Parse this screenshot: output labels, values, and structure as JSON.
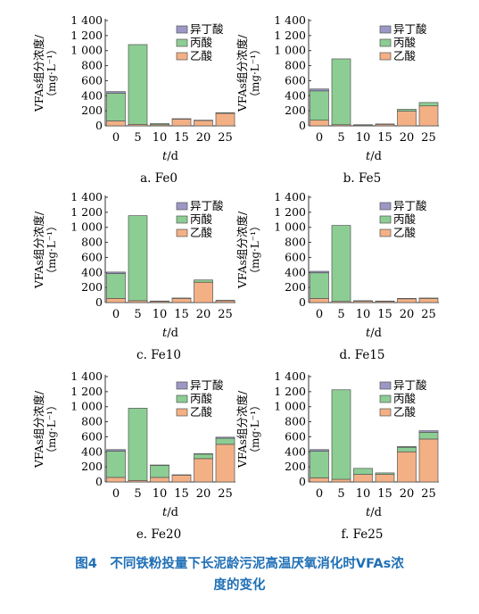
{
  "caption": {
    "line1": "图4　不同铁粉投量下长泥龄污泥高温厌氧消化时VFAs浓",
    "line2": "度的变化"
  },
  "colors": {
    "isobutyric": "#9c98c6",
    "propionic": "#8ccd93",
    "acetic": "#f4b085",
    "edge": "#555555"
  },
  "chart_data": [
    {
      "type": "bar",
      "stacked": true,
      "panel": "a. Fe0",
      "ylabel": "VFAs组分浓度/（mg·L⁻¹）",
      "xlabel": "t/d",
      "categories": [
        "0",
        "5",
        "10",
        "15",
        "20",
        "25"
      ],
      "ylim": [
        0,
        1400
      ],
      "yticks": [
        "0",
        "200",
        "400",
        "600",
        "800",
        "1 000",
        "1 200",
        "1 400"
      ],
      "series": [
        {
          "name": "乙酸",
          "values": [
            65,
            20,
            15,
            90,
            70,
            165
          ]
        },
        {
          "name": "丙酸",
          "values": [
            370,
            1060,
            15,
            5,
            5,
            10
          ]
        },
        {
          "name": "异丁酸",
          "values": [
            20,
            0,
            0,
            0,
            0,
            0
          ]
        }
      ]
    },
    {
      "type": "bar",
      "stacked": true,
      "panel": "b. Fe5",
      "ylabel": "VFAs组分浓度/（mg·L⁻¹）",
      "xlabel": "t/d",
      "categories": [
        "0",
        "5",
        "10",
        "15",
        "20",
        "25"
      ],
      "ylim": [
        0,
        1400
      ],
      "yticks": [
        "0",
        "200",
        "400",
        "600",
        "800",
        "1 000",
        "1 200",
        "1 400"
      ],
      "series": [
        {
          "name": "乙酸",
          "values": [
            75,
            15,
            10,
            20,
            195,
            265
          ]
        },
        {
          "name": "丙酸",
          "values": [
            390,
            875,
            5,
            5,
            25,
            45
          ]
        },
        {
          "name": "异丁酸",
          "values": [
            25,
            0,
            0,
            0,
            0,
            0
          ]
        }
      ]
    },
    {
      "type": "bar",
      "stacked": true,
      "panel": "c. Fe10",
      "ylabel": "VFAs组分浓度/（mg·L⁻¹）",
      "xlabel": "t/d",
      "categories": [
        "0",
        "5",
        "10",
        "15",
        "20",
        "25"
      ],
      "ylim": [
        0,
        1400
      ],
      "yticks": [
        "0",
        "200",
        "400",
        "600",
        "800",
        "1 000",
        "1 200",
        "1 400"
      ],
      "series": [
        {
          "name": "乙酸",
          "values": [
            55,
            25,
            15,
            55,
            270,
            25
          ]
        },
        {
          "name": "丙酸",
          "values": [
            330,
            1130,
            5,
            5,
            30,
            5
          ]
        },
        {
          "name": "异丁酸",
          "values": [
            20,
            0,
            0,
            0,
            0,
            0
          ]
        }
      ]
    },
    {
      "type": "bar",
      "stacked": true,
      "panel": "d. Fe15",
      "ylabel": "VFAs组分浓度/（mg·L⁻¹）",
      "xlabel": "t/d",
      "categories": [
        "0",
        "5",
        "10",
        "15",
        "20",
        "25"
      ],
      "ylim": [
        0,
        1400
      ],
      "yticks": [
        "0",
        "200",
        "400",
        "600",
        "800",
        "1 000",
        "1 200",
        "1 400"
      ],
      "series": [
        {
          "name": "乙酸",
          "values": [
            55,
            15,
            20,
            15,
            50,
            55
          ]
        },
        {
          "name": "丙酸",
          "values": [
            340,
            1010,
            5,
            5,
            5,
            5
          ]
        },
        {
          "name": "异丁酸",
          "values": [
            20,
            0,
            0,
            0,
            0,
            0
          ]
        }
      ]
    },
    {
      "type": "bar",
      "stacked": true,
      "panel": "e. Fe20",
      "ylabel": "VFAs组分浓度/（mg·L⁻¹）",
      "xlabel": "t/d",
      "categories": [
        "0",
        "5",
        "10",
        "15",
        "20",
        "25"
      ],
      "ylim": [
        0,
        1400
      ],
      "yticks": [
        "0",
        "200",
        "400",
        "600",
        "800",
        "1 000",
        "1 200",
        "1 400"
      ],
      "series": [
        {
          "name": "乙酸",
          "values": [
            60,
            20,
            60,
            90,
            310,
            500
          ]
        },
        {
          "name": "丙酸",
          "values": [
            350,
            960,
            160,
            5,
            60,
            80
          ]
        },
        {
          "name": "异丁酸",
          "values": [
            20,
            0,
            5,
            0,
            5,
            15
          ]
        }
      ]
    },
    {
      "type": "bar",
      "stacked": true,
      "panel": "f. Fe25",
      "ylabel": "VFAs组分浓度/（mg·L⁻¹）",
      "xlabel": "t/d",
      "categories": [
        "0",
        "5",
        "10",
        "15",
        "20",
        "25"
      ],
      "ylim": [
        0,
        1400
      ],
      "yticks": [
        "0",
        "200",
        "400",
        "600",
        "800",
        "1 000",
        "1 200",
        "1 400"
      ],
      "series": [
        {
          "name": "乙酸",
          "values": [
            55,
            35,
            100,
            100,
            400,
            570
          ]
        },
        {
          "name": "丙酸",
          "values": [
            355,
            1190,
            80,
            20,
            60,
            90
          ]
        },
        {
          "name": "异丁酸",
          "values": [
            20,
            0,
            0,
            0,
            10,
            20
          ]
        }
      ]
    }
  ]
}
